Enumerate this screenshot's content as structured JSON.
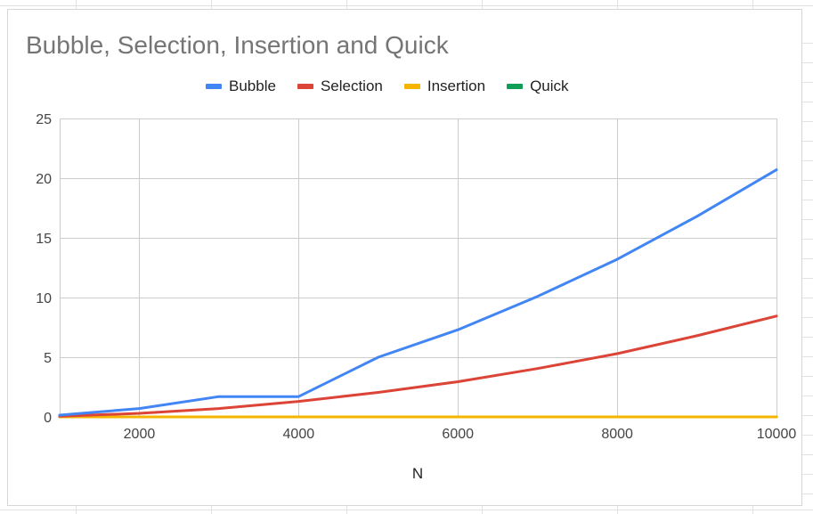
{
  "chart_data": {
    "type": "line",
    "title": "Bubble, Selection, Insertion and Quick",
    "xlabel": "N",
    "ylabel": "",
    "xlim": [
      1000,
      10000
    ],
    "ylim": [
      0,
      25
    ],
    "xticks": [
      2000,
      4000,
      6000,
      8000,
      10000
    ],
    "yticks": [
      0,
      5,
      10,
      15,
      20,
      25
    ],
    "grid": true,
    "legend_position": "top",
    "x": [
      1000,
      2000,
      3000,
      4000,
      5000,
      6000,
      7000,
      8000,
      9000,
      10000
    ],
    "series": [
      {
        "name": "Bubble",
        "color": "#4285f4",
        "values": [
          0.15,
          0.7,
          1.7,
          1.7,
          5.0,
          7.3,
          10.1,
          13.2,
          16.8,
          20.7
        ]
      },
      {
        "name": "Selection",
        "color": "#db4437",
        "values": [
          0.05,
          0.3,
          0.7,
          1.3,
          2.05,
          2.95,
          4.05,
          5.3,
          6.8,
          8.45
        ]
      },
      {
        "name": "Insertion",
        "color": "#f4b400",
        "values": [
          0.0,
          0.0,
          0.0,
          0.0,
          0.0,
          0.0,
          0.0,
          0.0,
          0.0,
          0.0
        ]
      },
      {
        "name": "Quick",
        "color": "#0f9d58",
        "values": [
          0.0,
          0.0,
          0.0,
          0.0,
          0.0,
          0.0,
          0.0,
          0.0,
          0.0,
          0.0
        ]
      }
    ]
  }
}
